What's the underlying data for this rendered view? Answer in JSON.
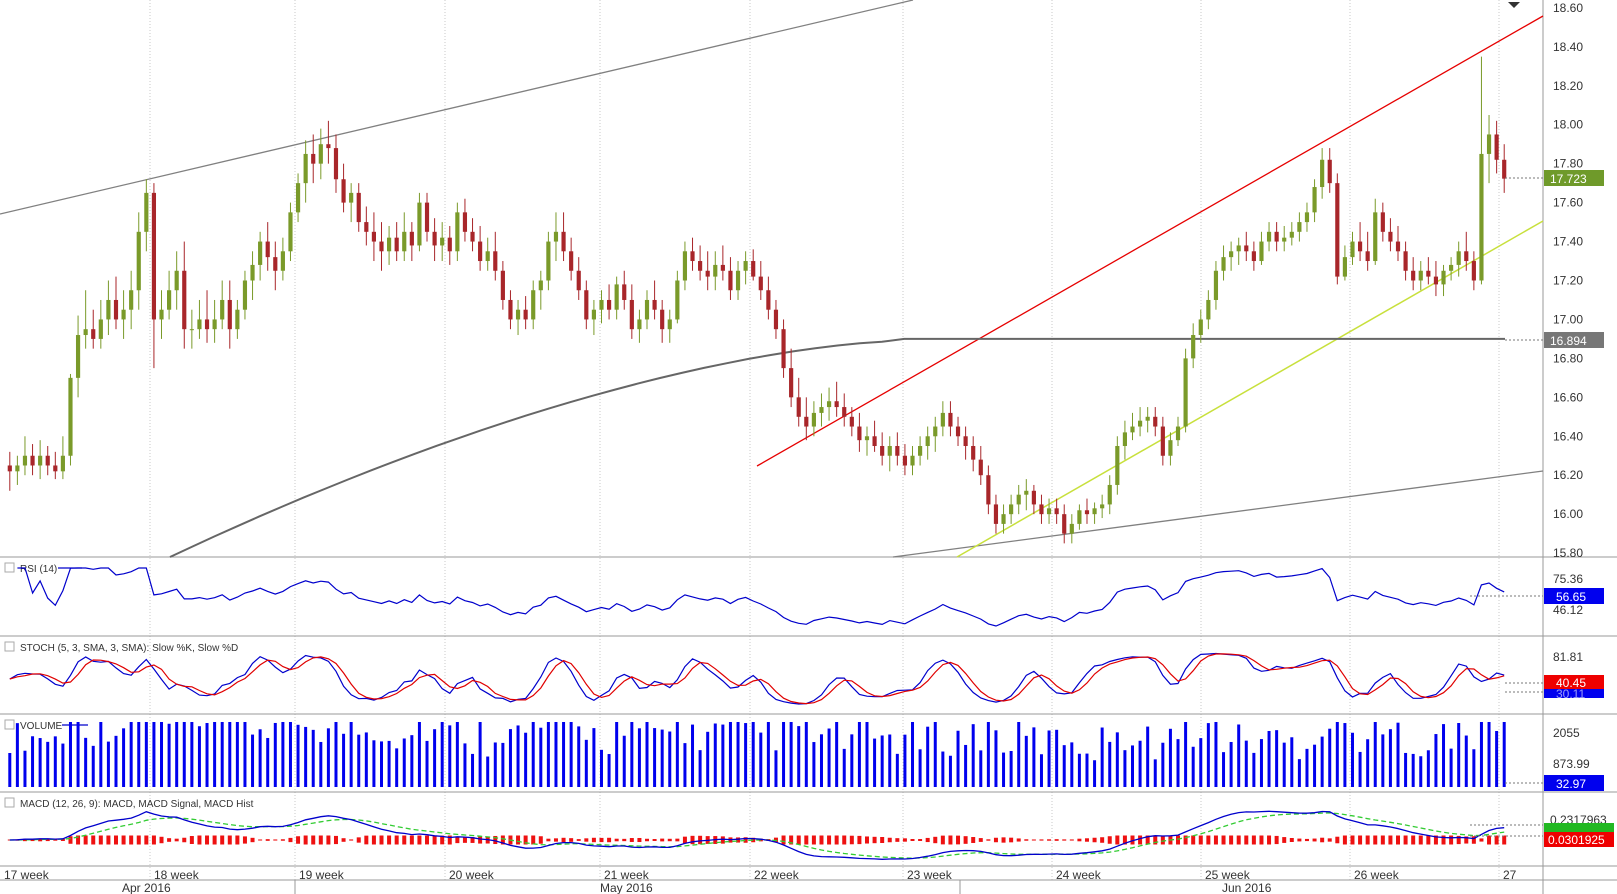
{
  "chart_data": {
    "type": "candlestick",
    "price_panel": {
      "yticks": [
        "18.60",
        "18.40",
        "18.20",
        "18.00",
        "17.80",
        "17.60",
        "17.40",
        "17.20",
        "17.00",
        "16.80",
        "16.60",
        "16.40",
        "16.20",
        "16.00",
        "15.80"
      ],
      "ylim": [
        15.78,
        18.62
      ],
      "last_price": "17.723",
      "ma_value": "16.894",
      "ohlc": [
        [
          16.25,
          16.32,
          16.12,
          16.22
        ],
        [
          16.22,
          16.3,
          16.15,
          16.25
        ],
        [
          16.25,
          16.4,
          16.2,
          16.3
        ],
        [
          16.3,
          16.36,
          16.2,
          16.25
        ],
        [
          16.25,
          16.38,
          16.18,
          16.3
        ],
        [
          16.3,
          16.35,
          16.2,
          16.25
        ],
        [
          16.25,
          16.32,
          16.18,
          16.22
        ],
        [
          16.22,
          16.4,
          16.18,
          16.3
        ],
        [
          16.3,
          16.72,
          16.25,
          16.7
        ],
        [
          16.7,
          17.02,
          16.6,
          16.92
        ],
        [
          16.92,
          17.15,
          16.85,
          16.95
        ],
        [
          16.95,
          17.05,
          16.85,
          16.9
        ],
        [
          16.9,
          17.1,
          16.85,
          17.0
        ],
        [
          17.0,
          17.2,
          16.92,
          17.1
        ],
        [
          17.1,
          17.22,
          16.95,
          17.0
        ],
        [
          17.0,
          17.15,
          16.9,
          17.05
        ],
        [
          17.05,
          17.25,
          16.95,
          17.15
        ],
        [
          17.15,
          17.55,
          17.05,
          17.45
        ],
        [
          17.45,
          17.72,
          17.35,
          17.65
        ],
        [
          17.65,
          17.7,
          16.75,
          17.0
        ],
        [
          17.0,
          17.15,
          16.9,
          17.05
        ],
        [
          17.05,
          17.25,
          17.0,
          17.15
        ],
        [
          17.15,
          17.35,
          17.05,
          17.25
        ],
        [
          17.25,
          17.4,
          16.85,
          16.95
        ],
        [
          16.95,
          17.05,
          16.85,
          16.95
        ],
        [
          16.95,
          17.1,
          16.9,
          17.0
        ],
        [
          17.0,
          17.15,
          16.88,
          16.95
        ],
        [
          16.95,
          17.1,
          16.88,
          17.0
        ],
        [
          17.0,
          17.2,
          16.95,
          17.1
        ],
        [
          17.1,
          17.2,
          16.85,
          16.95
        ],
        [
          16.95,
          17.1,
          16.9,
          17.05
        ],
        [
          17.05,
          17.25,
          17.0,
          17.2
        ],
        [
          17.2,
          17.35,
          17.1,
          17.28
        ],
        [
          17.28,
          17.45,
          17.2,
          17.4
        ],
        [
          17.4,
          17.5,
          17.25,
          17.32
        ],
        [
          17.32,
          17.4,
          17.15,
          17.25
        ],
        [
          17.25,
          17.42,
          17.2,
          17.35
        ],
        [
          17.35,
          17.6,
          17.3,
          17.55
        ],
        [
          17.55,
          17.75,
          17.5,
          17.7
        ],
        [
          17.7,
          17.92,
          17.6,
          17.85
        ],
        [
          17.85,
          17.95,
          17.7,
          17.8
        ],
        [
          17.8,
          17.98,
          17.72,
          17.9
        ],
        [
          17.9,
          18.02,
          17.8,
          17.88
        ],
        [
          17.88,
          17.95,
          17.65,
          17.72
        ],
        [
          17.72,
          17.8,
          17.55,
          17.6
        ],
        [
          17.6,
          17.7,
          17.5,
          17.65
        ],
        [
          17.65,
          17.7,
          17.45,
          17.5
        ],
        [
          17.5,
          17.58,
          17.38,
          17.45
        ],
        [
          17.45,
          17.55,
          17.3,
          17.4
        ],
        [
          17.4,
          17.5,
          17.25,
          17.35
        ],
        [
          17.35,
          17.48,
          17.28,
          17.42
        ],
        [
          17.42,
          17.5,
          17.3,
          17.35
        ],
        [
          17.35,
          17.55,
          17.3,
          17.45
        ],
        [
          17.45,
          17.5,
          17.3,
          17.38
        ],
        [
          17.38,
          17.65,
          17.35,
          17.6
        ],
        [
          17.6,
          17.65,
          17.4,
          17.45
        ],
        [
          17.45,
          17.52,
          17.3,
          17.38
        ],
        [
          17.38,
          17.5,
          17.3,
          17.42
        ],
        [
          17.42,
          17.48,
          17.28,
          17.35
        ],
        [
          17.35,
          17.6,
          17.3,
          17.55
        ],
        [
          17.55,
          17.62,
          17.4,
          17.45
        ],
        [
          17.45,
          17.52,
          17.35,
          17.4
        ],
        [
          17.4,
          17.48,
          17.25,
          17.3
        ],
        [
          17.3,
          17.42,
          17.25,
          17.35
        ],
        [
          17.35,
          17.45,
          17.2,
          17.25
        ],
        [
          17.25,
          17.3,
          17.05,
          17.1
        ],
        [
          17.1,
          17.15,
          16.95,
          17.0
        ],
        [
          17.0,
          17.1,
          16.92,
          17.05
        ],
        [
          17.05,
          17.12,
          16.95,
          17.0
        ],
        [
          17.0,
          17.2,
          16.95,
          17.15
        ],
        [
          17.15,
          17.25,
          17.05,
          17.2
        ],
        [
          17.2,
          17.45,
          17.15,
          17.4
        ],
        [
          17.4,
          17.55,
          17.3,
          17.45
        ],
        [
          17.45,
          17.55,
          17.3,
          17.35
        ],
        [
          17.35,
          17.42,
          17.2,
          17.25
        ],
        [
          17.25,
          17.32,
          17.1,
          17.15
        ],
        [
          17.15,
          17.2,
          16.95,
          17.0
        ],
        [
          17.0,
          17.1,
          16.92,
          17.05
        ],
        [
          17.05,
          17.15,
          16.98,
          17.1
        ],
        [
          17.1,
          17.18,
          17.0,
          17.05
        ],
        [
          17.05,
          17.22,
          17.0,
          17.18
        ],
        [
          17.18,
          17.25,
          17.05,
          17.1
        ],
        [
          17.1,
          17.18,
          16.9,
          16.95
        ],
        [
          16.95,
          17.05,
          16.88,
          17.0
        ],
        [
          17.0,
          17.15,
          16.95,
          17.1
        ],
        [
          17.1,
          17.2,
          17.0,
          17.05
        ],
        [
          17.05,
          17.1,
          16.88,
          16.95
        ],
        [
          16.95,
          17.05,
          16.88,
          17.0
        ],
        [
          17.0,
          17.25,
          16.98,
          17.2
        ],
        [
          17.2,
          17.4,
          17.15,
          17.35
        ],
        [
          17.35,
          17.42,
          17.25,
          17.3
        ],
        [
          17.3,
          17.38,
          17.2,
          17.25
        ],
        [
          17.25,
          17.35,
          17.15,
          17.22
        ],
        [
          17.22,
          17.35,
          17.15,
          17.28
        ],
        [
          17.28,
          17.38,
          17.2,
          17.25
        ],
        [
          17.25,
          17.32,
          17.1,
          17.15
        ],
        [
          17.15,
          17.3,
          17.1,
          17.25
        ],
        [
          17.25,
          17.35,
          17.18,
          17.3
        ],
        [
          17.3,
          17.36,
          17.2,
          17.22
        ],
        [
          17.22,
          17.3,
          17.1,
          17.15
        ],
        [
          17.15,
          17.22,
          17.0,
          17.05
        ],
        [
          17.05,
          17.1,
          16.9,
          16.95
        ],
        [
          16.95,
          17.0,
          16.7,
          16.75
        ],
        [
          16.75,
          16.85,
          16.55,
          16.6
        ],
        [
          16.6,
          16.7,
          16.45,
          16.5
        ],
        [
          16.5,
          16.6,
          16.38,
          16.45
        ],
        [
          16.45,
          16.58,
          16.4,
          16.52
        ],
        [
          16.52,
          16.62,
          16.45,
          16.55
        ],
        [
          16.55,
          16.65,
          16.48,
          16.58
        ],
        [
          16.58,
          16.68,
          16.5,
          16.55
        ],
        [
          16.55,
          16.62,
          16.45,
          16.5
        ],
        [
          16.5,
          16.55,
          16.4,
          16.45
        ],
        [
          16.45,
          16.52,
          16.32,
          16.38
        ],
        [
          16.38,
          16.45,
          16.3,
          16.4
        ],
        [
          16.4,
          16.48,
          16.32,
          16.35
        ],
        [
          16.35,
          16.42,
          16.25,
          16.3
        ],
        [
          16.3,
          16.4,
          16.22,
          16.35
        ],
        [
          16.35,
          16.42,
          16.25,
          16.3
        ],
        [
          16.3,
          16.36,
          16.2,
          16.25
        ],
        [
          16.25,
          16.35,
          16.2,
          16.3
        ],
        [
          16.3,
          16.4,
          16.25,
          16.35
        ],
        [
          16.35,
          16.45,
          16.28,
          16.4
        ],
        [
          16.4,
          16.5,
          16.32,
          16.45
        ],
        [
          16.45,
          16.58,
          16.4,
          16.52
        ],
        [
          16.52,
          16.58,
          16.4,
          16.45
        ],
        [
          16.45,
          16.5,
          16.35,
          16.4
        ],
        [
          16.4,
          16.45,
          16.28,
          16.35
        ],
        [
          16.35,
          16.4,
          16.22,
          16.28
        ],
        [
          16.28,
          16.35,
          16.15,
          16.2
        ],
        [
          16.2,
          16.25,
          16.0,
          16.05
        ],
        [
          16.05,
          16.1,
          15.9,
          15.95
        ],
        [
          15.95,
          16.05,
          15.9,
          16.0
        ],
        [
          16.0,
          16.1,
          15.95,
          16.05
        ],
        [
          16.05,
          16.15,
          16.0,
          16.1
        ],
        [
          16.1,
          16.18,
          16.02,
          16.12
        ],
        [
          16.12,
          16.15,
          16.0,
          16.05
        ],
        [
          16.05,
          16.1,
          15.95,
          16.0
        ],
        [
          16.0,
          16.08,
          15.95,
          16.03
        ],
        [
          16.03,
          16.08,
          15.95,
          16.0
        ],
        [
          16.0,
          16.05,
          15.85,
          15.9
        ],
        [
          15.9,
          16.0,
          15.85,
          15.95
        ],
        [
          15.95,
          16.05,
          15.92,
          16.02
        ],
        [
          16.02,
          16.08,
          15.95,
          16.0
        ],
        [
          16.0,
          16.06,
          15.95,
          16.03
        ],
        [
          16.03,
          16.1,
          15.98,
          16.05
        ],
        [
          16.05,
          16.2,
          16.0,
          16.15
        ],
        [
          16.15,
          16.4,
          16.1,
          16.35
        ],
        [
          16.35,
          16.48,
          16.28,
          16.42
        ],
        [
          16.42,
          16.52,
          16.38,
          16.45
        ],
        [
          16.45,
          16.55,
          16.4,
          16.48
        ],
        [
          16.48,
          16.55,
          16.42,
          16.5
        ],
        [
          16.5,
          16.55,
          16.4,
          16.45
        ],
        [
          16.45,
          16.5,
          16.25,
          16.3
        ],
        [
          16.3,
          16.42,
          16.25,
          16.38
        ],
        [
          16.38,
          16.5,
          16.35,
          16.45
        ],
        [
          16.45,
          16.85,
          16.42,
          16.8
        ],
        [
          16.8,
          16.98,
          16.75,
          16.92
        ],
        [
          16.92,
          17.05,
          16.88,
          17.0
        ],
        [
          17.0,
          17.15,
          16.95,
          17.1
        ],
        [
          17.1,
          17.3,
          17.05,
          17.25
        ],
        [
          17.25,
          17.38,
          17.2,
          17.32
        ],
        [
          17.32,
          17.4,
          17.25,
          17.35
        ],
        [
          17.35,
          17.42,
          17.28,
          17.38
        ],
        [
          17.38,
          17.45,
          17.3,
          17.35
        ],
        [
          17.35,
          17.4,
          17.25,
          17.3
        ],
        [
          17.3,
          17.45,
          17.28,
          17.4
        ],
        [
          17.4,
          17.5,
          17.35,
          17.45
        ],
        [
          17.45,
          17.5,
          17.35,
          17.4
        ],
        [
          17.4,
          17.48,
          17.35,
          17.42
        ],
        [
          17.42,
          17.5,
          17.38,
          17.45
        ],
        [
          17.45,
          17.55,
          17.4,
          17.5
        ],
        [
          17.5,
          17.6,
          17.45,
          17.55
        ],
        [
          17.55,
          17.72,
          17.5,
          17.68
        ],
        [
          17.68,
          17.88,
          17.62,
          17.82
        ],
        [
          17.82,
          17.88,
          17.65,
          17.7
        ],
        [
          17.7,
          17.75,
          17.18,
          17.22
        ],
        [
          17.22,
          17.38,
          17.2,
          17.32
        ],
        [
          17.32,
          17.45,
          17.28,
          17.4
        ],
        [
          17.4,
          17.5,
          17.3,
          17.35
        ],
        [
          17.35,
          17.45,
          17.25,
          17.3
        ],
        [
          17.3,
          17.62,
          17.28,
          17.55
        ],
        [
          17.55,
          17.6,
          17.4,
          17.45
        ],
        [
          17.45,
          17.52,
          17.35,
          17.4
        ],
        [
          17.4,
          17.48,
          17.3,
          17.35
        ],
        [
          17.35,
          17.4,
          17.2,
          17.25
        ],
        [
          17.25,
          17.32,
          17.15,
          17.2
        ],
        [
          17.2,
          17.3,
          17.15,
          17.25
        ],
        [
          17.25,
          17.32,
          17.18,
          17.22
        ],
        [
          17.22,
          17.3,
          17.12,
          17.18
        ],
        [
          17.18,
          17.28,
          17.12,
          17.25
        ],
        [
          17.25,
          17.32,
          17.2,
          17.28
        ],
        [
          17.28,
          17.4,
          17.22,
          17.35
        ],
        [
          17.35,
          17.45,
          17.25,
          17.3
        ],
        [
          17.3,
          17.35,
          17.15,
          17.2
        ],
        [
          17.2,
          18.35,
          17.18,
          17.85
        ],
        [
          17.85,
          18.05,
          17.7,
          17.95
        ],
        [
          17.95,
          18.02,
          17.75,
          17.82
        ],
        [
          17.82,
          17.9,
          17.65,
          17.723
        ]
      ]
    },
    "ma_line": [
      16.7,
      16.79,
      16.88,
      16.9,
      16.9,
      16.9,
      16.9
    ],
    "rsi": {
      "label": "RSI (14)",
      "yticks": [
        "75.36",
        "46.12"
      ],
      "current": "56.65"
    },
    "stoch": {
      "label": "STOCH (5, 3, SMA, 3, SMA): Slow %K, Slow %D",
      "yticks": [
        "81.81"
      ],
      "current_d": "40.45",
      "current_k": "30.11"
    },
    "volume": {
      "label": "VOLUME",
      "yticks": [
        "2055",
        "873.99"
      ],
      "current": "32.97"
    },
    "macd": {
      "label": "MACD (12, 26, 9): MACD, MACD Signal, MACD Hist",
      "current_macd": "0.2317963",
      "current_hist": "0.0301925"
    },
    "x_week_labels": [
      "17 week",
      "18 week",
      "19 week",
      "20 week",
      "21 week",
      "22 week",
      "23 week",
      "24 week",
      "25 week",
      "26 week",
      "27"
    ],
    "x_month_labels": [
      "Apr 2016",
      "May 2016",
      "Jun 2016"
    ],
    "colors": {
      "up": "#7a9a2a",
      "down": "#a8262a",
      "blue": "#0000cc",
      "red": "#e00000",
      "green": "#33cc33",
      "ma": "#666666",
      "trend_red": "#e60000",
      "trend_yellow": "#c8e03c",
      "channel": "#808080"
    }
  }
}
